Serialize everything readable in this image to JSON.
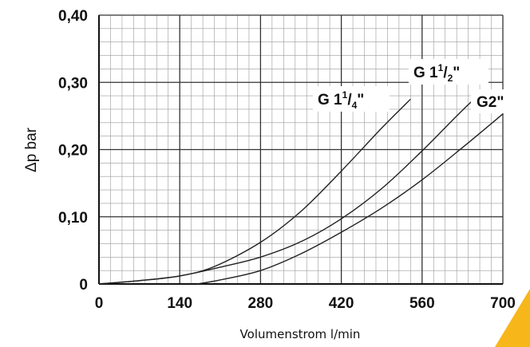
{
  "chart_data": {
    "type": "line",
    "xlabel": "Volumenstrom l/min",
    "ylabel": "Δp bar",
    "xlim": [
      0,
      700
    ],
    "ylim": [
      0,
      0.4
    ],
    "x_ticks": [
      0,
      140,
      280,
      420,
      560,
      700
    ],
    "x_tick_labels": [
      "0",
      "140",
      "280",
      "420",
      "560",
      "700"
    ],
    "y_ticks": [
      0,
      0.1,
      0.2,
      0.3,
      0.4
    ],
    "y_tick_labels": [
      "0",
      "0,10",
      "0,20",
      "0,30",
      "0,40"
    ],
    "grid": true,
    "series": [
      {
        "name": "G 1¹/₄\"",
        "label_parts": [
          "G 1",
          "1",
          "/",
          "4",
          "\""
        ],
        "points": [
          [
            0,
            0
          ],
          [
            70,
            0.005
          ],
          [
            140,
            0.012
          ],
          [
            200,
            0.026
          ],
          [
            280,
            0.062
          ],
          [
            350,
            0.108
          ],
          [
            420,
            0.168
          ],
          [
            490,
            0.232
          ],
          [
            540,
            0.275
          ]
        ]
      },
      {
        "name": "G 1¹/₂\"",
        "label_parts": [
          "G 1",
          "1",
          "/",
          "2",
          "\""
        ],
        "points": [
          [
            0,
            0
          ],
          [
            70,
            0.005
          ],
          [
            140,
            0.012
          ],
          [
            210,
            0.025
          ],
          [
            280,
            0.04
          ],
          [
            350,
            0.063
          ],
          [
            420,
            0.097
          ],
          [
            490,
            0.142
          ],
          [
            560,
            0.198
          ],
          [
            620,
            0.25
          ],
          [
            650,
            0.275
          ]
        ]
      },
      {
        "name": "G2\"",
        "label_parts": [
          "G2\""
        ],
        "points": [
          [
            170,
            0
          ],
          [
            210,
            0.006
          ],
          [
            280,
            0.02
          ],
          [
            350,
            0.045
          ],
          [
            420,
            0.077
          ],
          [
            490,
            0.113
          ],
          [
            560,
            0.155
          ],
          [
            630,
            0.203
          ],
          [
            700,
            0.253
          ]
        ]
      }
    ]
  }
}
